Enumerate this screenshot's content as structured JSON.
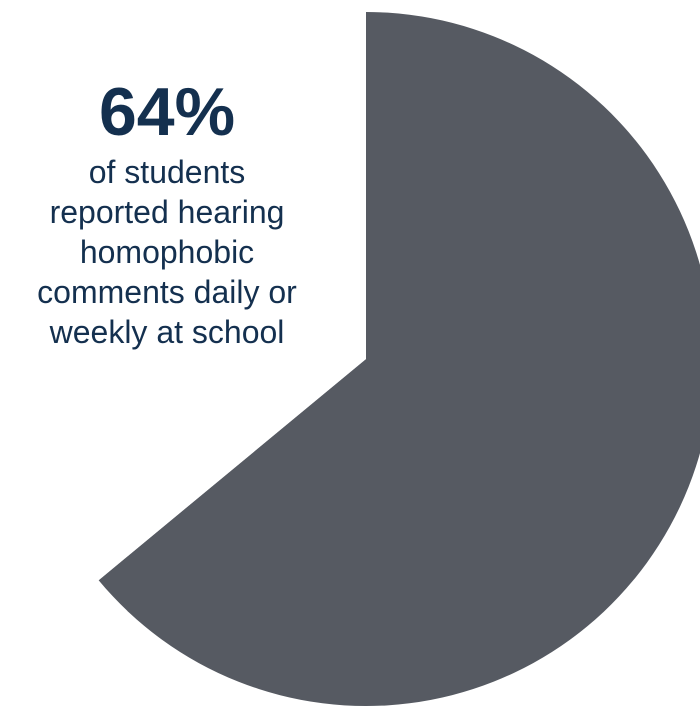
{
  "chart_data": {
    "type": "pie",
    "slices": [
      {
        "label": "",
        "value": 64,
        "color": "#565a62"
      },
      {
        "label": "",
        "value": 36,
        "color": "#ffffff"
      }
    ]
  },
  "callout": {
    "value": "64%",
    "lines": [
      "of students",
      "reported hearing",
      "homophobic",
      "comments daily or",
      "weekly at school"
    ]
  }
}
